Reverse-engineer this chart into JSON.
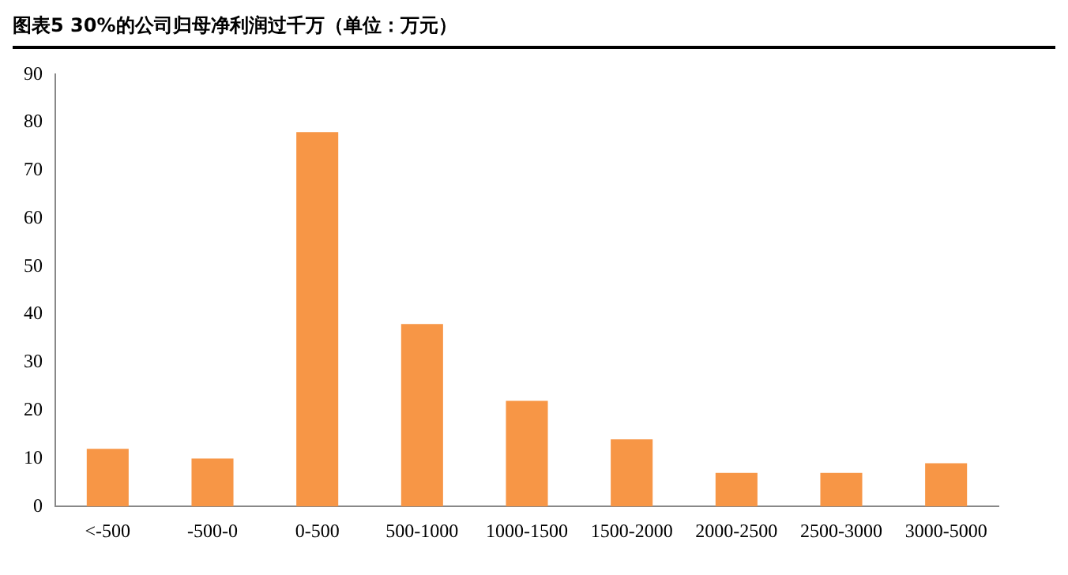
{
  "chart_data": {
    "type": "bar",
    "title": "图表5  30%的公司归母净利润过千万（单位：万元）",
    "categories": [
      "<-500",
      "-500-0",
      "0-500",
      "500-1000",
      "1000-1500",
      "1500-2000",
      "2000-2500",
      "2500-3000",
      "3000-5000"
    ],
    "values": [
      12,
      10,
      78,
      38,
      22,
      14,
      7,
      7,
      9
    ],
    "color": "#f79646",
    "ylim": [
      0,
      90
    ],
    "yticks": [
      0,
      10,
      20,
      30,
      40,
      50,
      60,
      70,
      80,
      90
    ],
    "grid": false,
    "legend": false
  }
}
